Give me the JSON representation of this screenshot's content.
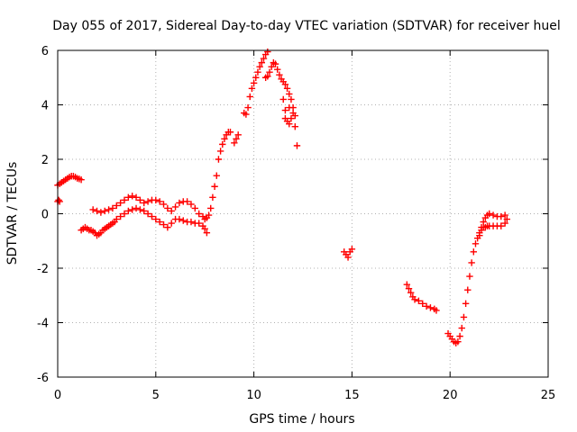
{
  "chart_data": {
    "type": "scatter",
    "title": "Day 055 of 2017, Sidereal Day-to-day VTEC variation (SDTVAR) for receiver huel",
    "xlabel": "GPS time / hours",
    "ylabel": "SDTVAR / TECUs",
    "xlim": [
      0,
      25
    ],
    "ylim": [
      -6,
      6
    ],
    "xticks": [
      0,
      5,
      10,
      15,
      20,
      25
    ],
    "yticks": [
      -6,
      -4,
      -2,
      0,
      2,
      4,
      6
    ],
    "grid": true,
    "legend": "none",
    "marker": "plus",
    "color": "#ff0000",
    "series": [
      {
        "values": [
          [
            0.0,
            0.45
          ],
          [
            0.05,
            0.5
          ],
          [
            0.1,
            0.45
          ],
          [
            0.0,
            1.05
          ],
          [
            0.1,
            1.1
          ],
          [
            0.2,
            1.15
          ],
          [
            0.3,
            1.2
          ],
          [
            0.4,
            1.25
          ],
          [
            0.5,
            1.3
          ],
          [
            0.6,
            1.35
          ],
          [
            0.7,
            1.38
          ],
          [
            0.8,
            1.38
          ],
          [
            0.9,
            1.35
          ],
          [
            1.0,
            1.3
          ],
          [
            1.1,
            1.28
          ],
          [
            1.2,
            1.25
          ],
          [
            1.2,
            -0.6
          ],
          [
            1.3,
            -0.55
          ],
          [
            1.4,
            -0.5
          ],
          [
            1.5,
            -0.55
          ],
          [
            1.6,
            -0.6
          ],
          [
            1.7,
            -0.6
          ],
          [
            1.8,
            -0.65
          ],
          [
            1.9,
            -0.7
          ],
          [
            2.0,
            -0.8
          ],
          [
            2.1,
            -0.75
          ],
          [
            2.2,
            -0.7
          ],
          [
            2.3,
            -0.6
          ],
          [
            2.4,
            -0.55
          ],
          [
            2.5,
            -0.5
          ],
          [
            2.6,
            -0.45
          ],
          [
            2.7,
            -0.4
          ],
          [
            2.8,
            -0.35
          ],
          [
            2.9,
            -0.3
          ],
          [
            3.0,
            -0.2
          ],
          [
            3.2,
            -0.1
          ],
          [
            3.4,
            0.0
          ],
          [
            3.6,
            0.1
          ],
          [
            3.8,
            0.15
          ],
          [
            4.0,
            0.2
          ],
          [
            4.2,
            0.15
          ],
          [
            4.4,
            0.1
          ],
          [
            4.6,
            0.0
          ],
          [
            4.8,
            -0.1
          ],
          [
            5.0,
            -0.2
          ],
          [
            5.2,
            -0.3
          ],
          [
            5.4,
            -0.4
          ],
          [
            5.6,
            -0.5
          ],
          [
            5.8,
            -0.35
          ],
          [
            6.0,
            -0.2
          ],
          [
            6.2,
            -0.2
          ],
          [
            6.4,
            -0.25
          ],
          [
            6.6,
            -0.3
          ],
          [
            6.8,
            -0.3
          ],
          [
            7.0,
            -0.35
          ],
          [
            7.2,
            -0.35
          ],
          [
            7.4,
            -0.45
          ],
          [
            7.5,
            -0.55
          ],
          [
            7.6,
            -0.7
          ],
          [
            1.8,
            0.15
          ],
          [
            2.0,
            0.1
          ],
          [
            2.2,
            0.05
          ],
          [
            2.4,
            0.1
          ],
          [
            2.6,
            0.15
          ],
          [
            2.8,
            0.2
          ],
          [
            3.0,
            0.3
          ],
          [
            3.2,
            0.4
          ],
          [
            3.4,
            0.5
          ],
          [
            3.6,
            0.6
          ],
          [
            3.8,
            0.65
          ],
          [
            4.0,
            0.6
          ],
          [
            4.2,
            0.5
          ],
          [
            4.4,
            0.4
          ],
          [
            4.6,
            0.45
          ],
          [
            4.8,
            0.5
          ],
          [
            5.0,
            0.5
          ],
          [
            5.2,
            0.45
          ],
          [
            5.4,
            0.35
          ],
          [
            5.6,
            0.2
          ],
          [
            5.8,
            0.1
          ],
          [
            6.0,
            0.25
          ],
          [
            6.2,
            0.4
          ],
          [
            6.4,
            0.45
          ],
          [
            6.6,
            0.45
          ],
          [
            6.8,
            0.35
          ],
          [
            7.0,
            0.2
          ],
          [
            7.2,
            0.0
          ],
          [
            7.4,
            -0.1
          ],
          [
            7.5,
            -0.2
          ],
          [
            7.6,
            -0.15
          ],
          [
            7.7,
            -0.05
          ],
          [
            7.8,
            0.2
          ],
          [
            7.9,
            0.6
          ],
          [
            8.0,
            1.0
          ],
          [
            8.1,
            1.4
          ],
          [
            8.2,
            2.0
          ],
          [
            8.3,
            2.3
          ],
          [
            8.4,
            2.55
          ],
          [
            8.5,
            2.75
          ],
          [
            8.6,
            2.9
          ],
          [
            8.7,
            3.0
          ],
          [
            8.8,
            3.0
          ],
          [
            9.0,
            2.6
          ],
          [
            9.1,
            2.75
          ],
          [
            9.2,
            2.9
          ],
          [
            9.5,
            3.7
          ],
          [
            9.6,
            3.65
          ],
          [
            9.7,
            3.9
          ],
          [
            9.8,
            4.3
          ],
          [
            9.9,
            4.6
          ],
          [
            10.0,
            4.8
          ],
          [
            10.1,
            5.0
          ],
          [
            10.2,
            5.2
          ],
          [
            10.3,
            5.4
          ],
          [
            10.4,
            5.55
          ],
          [
            10.5,
            5.7
          ],
          [
            10.6,
            5.85
          ],
          [
            10.7,
            5.95
          ],
          [
            10.6,
            5.0
          ],
          [
            10.7,
            5.05
          ],
          [
            10.8,
            5.2
          ],
          [
            10.9,
            5.4
          ],
          [
            11.0,
            5.55
          ],
          [
            11.1,
            5.5
          ],
          [
            11.2,
            5.3
          ],
          [
            11.3,
            5.1
          ],
          [
            11.4,
            4.95
          ],
          [
            11.5,
            4.85
          ],
          [
            11.6,
            4.75
          ],
          [
            11.7,
            4.6
          ],
          [
            11.8,
            4.4
          ],
          [
            11.9,
            4.2
          ],
          [
            12.0,
            3.9
          ],
          [
            12.1,
            3.2
          ],
          [
            12.2,
            2.5
          ],
          [
            11.5,
            4.2
          ],
          [
            11.6,
            3.8
          ],
          [
            11.7,
            3.4
          ],
          [
            11.8,
            3.3
          ],
          [
            11.9,
            3.5
          ],
          [
            12.0,
            3.7
          ],
          [
            12.1,
            3.6
          ],
          [
            11.6,
            3.5
          ],
          [
            11.8,
            3.9
          ],
          [
            14.6,
            -1.4
          ],
          [
            14.7,
            -1.5
          ],
          [
            14.8,
            -1.6
          ],
          [
            14.9,
            -1.4
          ],
          [
            15.0,
            -1.3
          ],
          [
            17.8,
            -2.6
          ],
          [
            17.9,
            -2.75
          ],
          [
            18.0,
            -2.9
          ],
          [
            18.1,
            -3.05
          ],
          [
            18.2,
            -3.15
          ],
          [
            18.4,
            -3.2
          ],
          [
            18.6,
            -3.3
          ],
          [
            18.8,
            -3.4
          ],
          [
            19.0,
            -3.45
          ],
          [
            19.2,
            -3.5
          ],
          [
            19.3,
            -3.55
          ],
          [
            19.9,
            -4.4
          ],
          [
            20.0,
            -4.5
          ],
          [
            20.1,
            -4.6
          ],
          [
            20.2,
            -4.7
          ],
          [
            20.3,
            -4.75
          ],
          [
            20.4,
            -4.7
          ],
          [
            20.5,
            -4.5
          ],
          [
            20.6,
            -4.2
          ],
          [
            20.7,
            -3.8
          ],
          [
            20.8,
            -3.3
          ],
          [
            20.9,
            -2.8
          ],
          [
            21.0,
            -2.3
          ],
          [
            21.1,
            -1.8
          ],
          [
            21.2,
            -1.4
          ],
          [
            21.3,
            -1.1
          ],
          [
            21.4,
            -0.9
          ],
          [
            21.5,
            -0.7
          ],
          [
            21.6,
            -0.6
          ],
          [
            21.7,
            -0.5
          ],
          [
            21.8,
            -0.5
          ],
          [
            21.9,
            -0.45
          ],
          [
            22.0,
            -0.45
          ],
          [
            22.2,
            -0.45
          ],
          [
            22.4,
            -0.45
          ],
          [
            22.6,
            -0.45
          ],
          [
            22.8,
            -0.35
          ],
          [
            21.5,
            -0.8
          ],
          [
            21.6,
            -0.5
          ],
          [
            21.7,
            -0.3
          ],
          [
            21.8,
            -0.15
          ],
          [
            21.9,
            -0.05
          ],
          [
            22.0,
            0.0
          ],
          [
            22.2,
            -0.05
          ],
          [
            22.4,
            -0.1
          ],
          [
            22.6,
            -0.1
          ],
          [
            22.8,
            -0.05
          ],
          [
            22.9,
            -0.2
          ]
        ]
      }
    ]
  }
}
